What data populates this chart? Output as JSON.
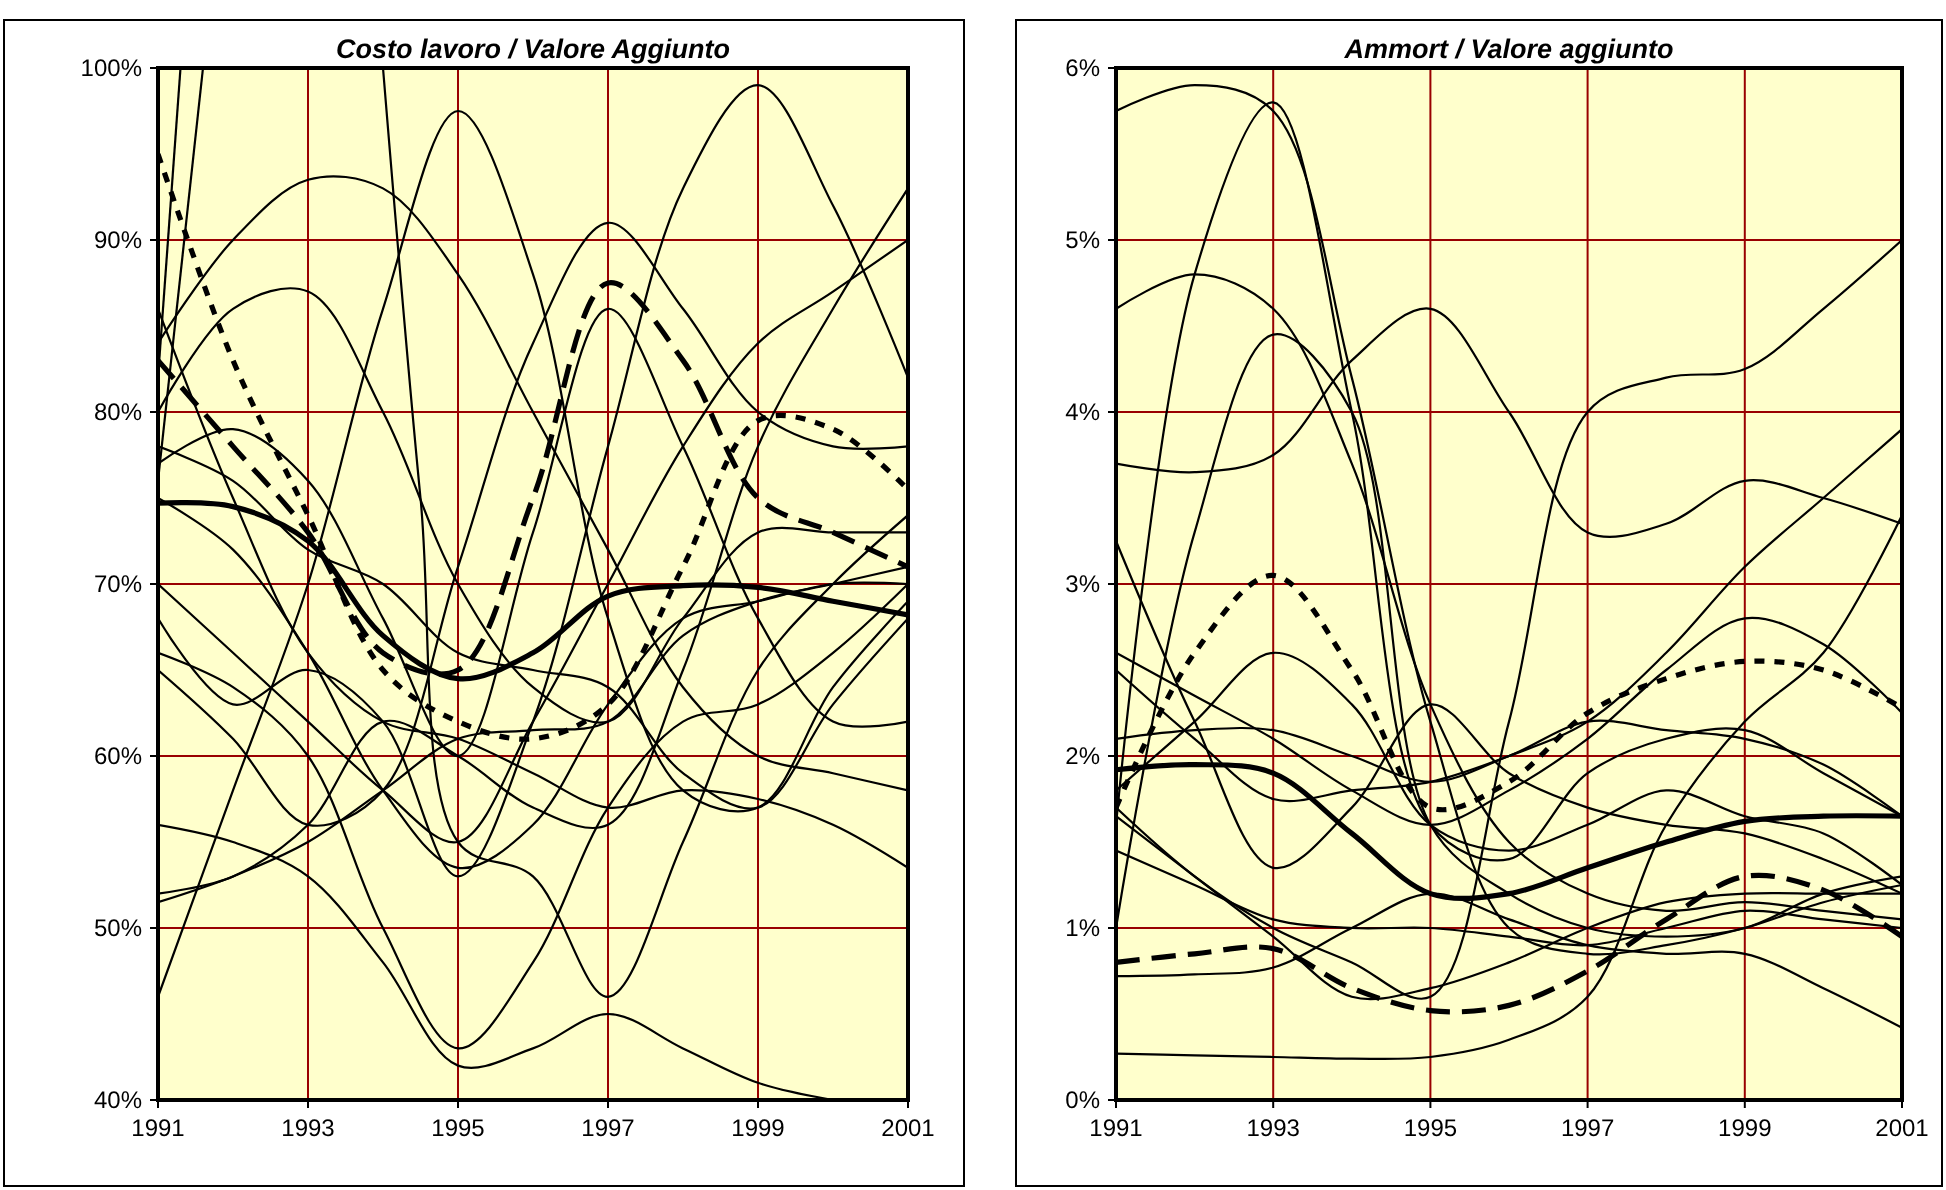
{
  "chart_data": [
    {
      "type": "line",
      "title": "Costo lavoro / Valore Aggiunto",
      "xlim": [
        1991,
        2001
      ],
      "xticks": [
        1991,
        1993,
        1995,
        1997,
        1999,
        2001
      ],
      "ylim": [
        40,
        100
      ],
      "yticks": [
        {
          "value": 40,
          "label": "40%"
        },
        {
          "value": 50,
          "label": "50%"
        },
        {
          "value": 60,
          "label": "60%"
        },
        {
          "value": 70,
          "label": "70%"
        },
        {
          "value": 80,
          "label": "80%"
        },
        {
          "value": 90,
          "label": "90%"
        },
        {
          "value": 100,
          "label": "100%"
        }
      ],
      "grid": true,
      "marker": "none",
      "series": [
        {
          "color": "#000000",
          "line_style": "solid",
          "x": [
            1991,
            1992,
            1993,
            1994,
            1995,
            1996,
            1997,
            1998,
            1999,
            2000,
            2001
          ],
          "values": [
            74.7,
            74.5,
            72.5,
            67,
            64.5,
            66,
            69.3,
            69.9,
            69.8,
            69,
            68.2
          ]
        },
        {
          "color": "#000000",
          "line_style": "dotted",
          "x": [
            1991,
            1992,
            1993,
            1994,
            1995,
            1996,
            1997,
            1998,
            1999,
            2000,
            2001
          ],
          "values": [
            95,
            83,
            74,
            65,
            62,
            61,
            63,
            71,
            79.5,
            79,
            75.5
          ]
        },
        {
          "color": "#000000",
          "line_style": "dashed",
          "x": [
            1991,
            1992,
            1993,
            1994,
            1995,
            1996,
            1997,
            1998,
            1999,
            2000,
            2001
          ],
          "values": [
            83,
            78,
            73,
            66,
            65,
            75,
            87.5,
            83,
            75,
            73,
            71
          ]
        },
        {
          "color": "#000000",
          "x": [
            1991,
            1992,
            1993,
            1994,
            1995,
            1996,
            1997,
            1998,
            1999,
            2000,
            2001
          ],
          "values": [
            46,
            58,
            70,
            86,
            97.5,
            88,
            68,
            58,
            57,
            64,
            69
          ]
        },
        {
          "color": "#000000",
          "x": [
            1991,
            1992,
            1993,
            1994,
            1995,
            1996,
            1997,
            1998,
            1999,
            2000,
            2001
          ],
          "values": [
            68,
            63,
            65,
            62,
            53,
            62,
            78,
            93,
            99,
            92,
            82
          ]
        },
        {
          "color": "#000000",
          "x": [
            1991,
            1992,
            1993,
            1994,
            1995,
            1996,
            1997,
            1998,
            1999,
            2000,
            2001
          ],
          "values": [
            84,
            90,
            93.5,
            93,
            88,
            80,
            72,
            64,
            60,
            59,
            58
          ]
        },
        {
          "color": "#000000",
          "x": [
            1991,
            1992,
            1993,
            1994,
            1995,
            1996,
            1997,
            1998,
            1999,
            2000,
            2001
          ],
          "values": [
            65,
            61,
            56,
            58,
            71,
            84,
            91,
            86,
            80,
            78,
            78
          ]
        },
        {
          "color": "#000000",
          "x": [
            1991,
            1992,
            1993,
            1994,
            1995,
            1996,
            1997,
            1998,
            1999,
            2000,
            2001
          ],
          "values": [
            80,
            86,
            87,
            80,
            70,
            64,
            62,
            68,
            73,
            73,
            73
          ]
        },
        {
          "color": "#000000",
          "x": [
            1991,
            1992,
            1993,
            1994,
            1995,
            1996,
            1997,
            1998,
            1999,
            2000,
            2001
          ],
          "values": [
            77,
            79,
            76,
            68,
            60,
            73,
            86,
            78,
            68,
            62,
            62
          ]
        },
        {
          "color": "#000000",
          "x": [
            1991,
            1992,
            1993,
            1994,
            1995,
            1996,
            1997,
            1998,
            1999,
            2000,
            2001
          ],
          "values": [
            52,
            53,
            56,
            62,
            60,
            57,
            56,
            65,
            78,
            86,
            93
          ]
        },
        {
          "color": "#000000",
          "x": [
            1991,
            1992,
            1993,
            1994,
            1995,
            1996,
            1997,
            1998,
            1999,
            2000,
            2001
          ],
          "values": [
            70,
            66,
            62,
            58,
            55,
            62,
            70,
            78,
            84,
            87,
            90
          ]
        },
        {
          "color": "#000000",
          "x": [
            1991,
            1992,
            1993,
            1994,
            1995,
            1996,
            1997,
            1998,
            1999,
            2000
          ],
          "values": [
            56,
            55,
            53,
            48,
            42,
            43,
            45,
            43,
            41,
            40
          ]
        },
        {
          "color": "#000000",
          "x": [
            1991,
            1992,
            1993,
            1994,
            1995,
            1996,
            1997,
            1998,
            1999,
            2000,
            2001
          ],
          "values": [
            66,
            64,
            60,
            50,
            43,
            48,
            57,
            62,
            63,
            66,
            70
          ]
        },
        {
          "color": "#000000",
          "x": [
            1994,
            1994.5,
            1995,
            1996,
            1997,
            1998,
            1999,
            2000,
            2001
          ],
          "values": [
            100,
            75,
            55,
            53,
            46,
            55,
            65,
            70,
            74
          ]
        },
        {
          "color": "#000000",
          "x": [
            1991,
            1992,
            1993,
            1994,
            1995,
            1996,
            1997,
            1998,
            1999,
            2000,
            2001
          ],
          "values": [
            75,
            72,
            66,
            58,
            53.5,
            56,
            63,
            68,
            69,
            70,
            70
          ]
        },
        {
          "color": "#000000",
          "x": [
            1991,
            1992,
            1993,
            1994,
            1995,
            1996,
            1997,
            1998,
            1999,
            2000,
            2001
          ],
          "values": [
            78,
            76,
            72,
            70,
            66,
            65,
            64,
            59,
            57,
            63,
            68
          ]
        },
        {
          "color": "#000000",
          "x": [
            1991,
            1992,
            1993,
            1994,
            1995,
            1996,
            1997,
            1998,
            1999,
            2000,
            2001
          ],
          "values": [
            51.5,
            53,
            55,
            58,
            61,
            61.5,
            62,
            67,
            69,
            70,
            71
          ]
        },
        {
          "color": "#000000",
          "x": [
            1991,
            1992,
            1993,
            1994,
            1995,
            1996,
            1997,
            1998,
            1999,
            2000,
            2001
          ],
          "values": [
            86,
            75,
            66,
            62,
            61,
            59,
            57,
            58,
            57.5,
            56,
            53.5
          ]
        },
        {
          "color": "#000000",
          "x": [
            1991,
            1991.6
          ],
          "values": [
            76,
            100
          ]
        },
        {
          "color": "#000000",
          "x": [
            1991,
            1991.3
          ],
          "values": [
            82,
            100
          ]
        }
      ]
    },
    {
      "type": "line",
      "title": "Ammort / Valore aggiunto",
      "xlim": [
        1991,
        2001
      ],
      "xticks": [
        1991,
        1993,
        1995,
        1997,
        1999,
        2001
      ],
      "ylim": [
        0,
        6
      ],
      "yticks": [
        {
          "value": 0,
          "label": "0%"
        },
        {
          "value": 1,
          "label": "1%"
        },
        {
          "value": 2,
          "label": "2%"
        },
        {
          "value": 3,
          "label": "3%"
        },
        {
          "value": 4,
          "label": "4%"
        },
        {
          "value": 5,
          "label": "5%"
        },
        {
          "value": 6,
          "label": "6%"
        }
      ],
      "grid": true,
      "marker": "none",
      "series": [
        {
          "color": "#000000",
          "line_style": "solid",
          "x": [
            1991,
            1992,
            1993,
            1994,
            1995,
            1996,
            1997,
            1998,
            1999,
            2000,
            2001
          ],
          "values": [
            1.92,
            1.95,
            1.9,
            1.55,
            1.2,
            1.2,
            1.35,
            1.5,
            1.62,
            1.65,
            1.65
          ]
        },
        {
          "color": "#000000",
          "line_style": "dotted",
          "x": [
            1991,
            1992,
            1993,
            1994,
            1995,
            1996,
            1997,
            1998,
            1999,
            2000,
            2001
          ],
          "values": [
            1.7,
            2.6,
            3.05,
            2.5,
            1.7,
            1.85,
            2.25,
            2.45,
            2.55,
            2.5,
            2.28
          ]
        },
        {
          "color": "#000000",
          "line_style": "dashed",
          "x": [
            1991,
            1992,
            1993,
            1994,
            1995,
            1996,
            1997,
            1998,
            1999,
            2000,
            2001
          ],
          "values": [
            0.8,
            0.85,
            0.88,
            0.65,
            0.52,
            0.55,
            0.75,
            1.05,
            1.3,
            1.22,
            0.95
          ]
        },
        {
          "color": "#000000",
          "x": [
            1991,
            1992,
            1993,
            1994,
            1995,
            1996,
            1997,
            1998,
            1999,
            2000,
            2001
          ],
          "values": [
            5.75,
            5.9,
            5.75,
            4.2,
            2.2,
            1.0,
            0.85,
            0.9,
            1.0,
            1.15,
            1.25
          ]
        },
        {
          "color": "#000000",
          "x": [
            1991,
            1992,
            1993,
            1994,
            1995,
            1996,
            1997,
            1998,
            1999,
            2000,
            2001
          ],
          "values": [
            1.6,
            4.8,
            5.8,
            4.0,
            1.6,
            1.4,
            1.9,
            2.1,
            2.15,
            1.9,
            1.65
          ]
        },
        {
          "color": "#000000",
          "x": [
            1991,
            1992,
            1993,
            1994,
            1995,
            1996,
            1997,
            1998,
            1999,
            2000,
            2001
          ],
          "values": [
            4.6,
            4.8,
            4.6,
            3.7,
            2.3,
            1.5,
            1.2,
            1.1,
            1.15,
            1.1,
            1.05
          ]
        },
        {
          "color": "#000000",
          "x": [
            1991,
            1992,
            1993,
            1994,
            1995,
            1996,
            1997,
            1998,
            1999,
            2000,
            2001
          ],
          "values": [
            1.0,
            3.3,
            4.45,
            4.0,
            1.6,
            1.2,
            1.0,
            0.95,
            1.0,
            1.2,
            1.3
          ]
        },
        {
          "color": "#000000",
          "x": [
            1991,
            1992,
            1993,
            1994,
            1995,
            1996,
            1997,
            1998,
            1999,
            2000,
            2001
          ],
          "values": [
            3.7,
            3.65,
            3.75,
            4.3,
            4.6,
            4.0,
            3.3,
            3.35,
            3.6,
            3.5,
            3.35
          ]
        },
        {
          "color": "#000000",
          "x": [
            1991,
            1992,
            1993,
            1994,
            1995,
            1996,
            1997,
            1998,
            1999,
            2000,
            2001
          ],
          "values": [
            1.7,
            1.3,
            1.0,
            0.8,
            0.6,
            2.2,
            4.0,
            4.2,
            4.25,
            4.6,
            5.0
          ]
        },
        {
          "color": "#000000",
          "x": [
            1991,
            1992,
            1993,
            1994,
            1995,
            1996,
            1997,
            1998,
            1999,
            2000,
            2001
          ],
          "values": [
            2.5,
            2.1,
            1.75,
            1.8,
            1.85,
            2.0,
            2.2,
            2.6,
            3.1,
            3.5,
            3.9
          ]
        },
        {
          "color": "#000000",
          "x": [
            1991,
            1992,
            1993,
            1994,
            1995,
            1996,
            1997,
            1998,
            1999,
            2000,
            2001
          ],
          "values": [
            2.6,
            2.35,
            2.1,
            1.8,
            1.6,
            1.8,
            2.1,
            2.5,
            2.8,
            2.65,
            2.25
          ]
        },
        {
          "color": "#000000",
          "x": [
            1991,
            1992,
            1993,
            1994,
            1995,
            1996,
            1997,
            1998,
            1999,
            2000,
            2001
          ],
          "values": [
            0.27,
            0.26,
            0.25,
            0.24,
            0.25,
            0.35,
            0.6,
            1.6,
            2.2,
            2.6,
            3.4
          ]
        },
        {
          "color": "#000000",
          "x": [
            1991,
            1992,
            1993,
            1994,
            1995,
            1996,
            1997,
            1998,
            1999,
            2000,
            2001
          ],
          "values": [
            1.8,
            2.2,
            2.6,
            2.3,
            1.6,
            1.45,
            1.6,
            1.8,
            1.65,
            1.55,
            1.25
          ]
        },
        {
          "color": "#000000",
          "x": [
            1991,
            1992,
            1993,
            1994,
            1995,
            1996,
            1997,
            1998,
            1999,
            2000,
            2001
          ],
          "values": [
            0.72,
            0.73,
            0.77,
            1.0,
            1.2,
            1.05,
            0.9,
            0.85,
            0.85,
            0.65,
            0.42
          ]
        },
        {
          "color": "#000000",
          "x": [
            1991,
            1992,
            1993,
            1994,
            1995,
            1996,
            1997,
            1998,
            1999,
            2000,
            2001
          ],
          "values": [
            3.25,
            2.2,
            1.35,
            1.7,
            2.3,
            1.9,
            1.7,
            1.6,
            1.55,
            1.4,
            1.2
          ]
        },
        {
          "color": "#000000",
          "x": [
            1991,
            1992,
            1993,
            1994,
            1995,
            1996,
            1997,
            1998,
            1999,
            2000,
            2001
          ],
          "values": [
            2.1,
            2.15,
            2.15,
            2.0,
            1.85,
            2.0,
            2.2,
            2.15,
            2.1,
            1.95,
            1.65
          ]
        },
        {
          "color": "#000000",
          "x": [
            1991,
            1992,
            1993,
            1994,
            1995,
            1996,
            1997,
            1998,
            1999,
            2000,
            2001
          ],
          "values": [
            1.45,
            1.25,
            1.05,
            1.0,
            1.0,
            0.95,
            0.9,
            1.0,
            1.1,
            1.05,
            1.0
          ]
        },
        {
          "color": "#000000",
          "x": [
            1991,
            1992,
            1993,
            1994,
            1995,
            1996,
            1997,
            1998,
            1999,
            2000,
            2001
          ],
          "values": [
            1.65,
            1.3,
            0.95,
            0.6,
            0.65,
            0.8,
            1.0,
            1.15,
            1.2,
            1.2,
            1.2
          ]
        }
      ]
    }
  ]
}
